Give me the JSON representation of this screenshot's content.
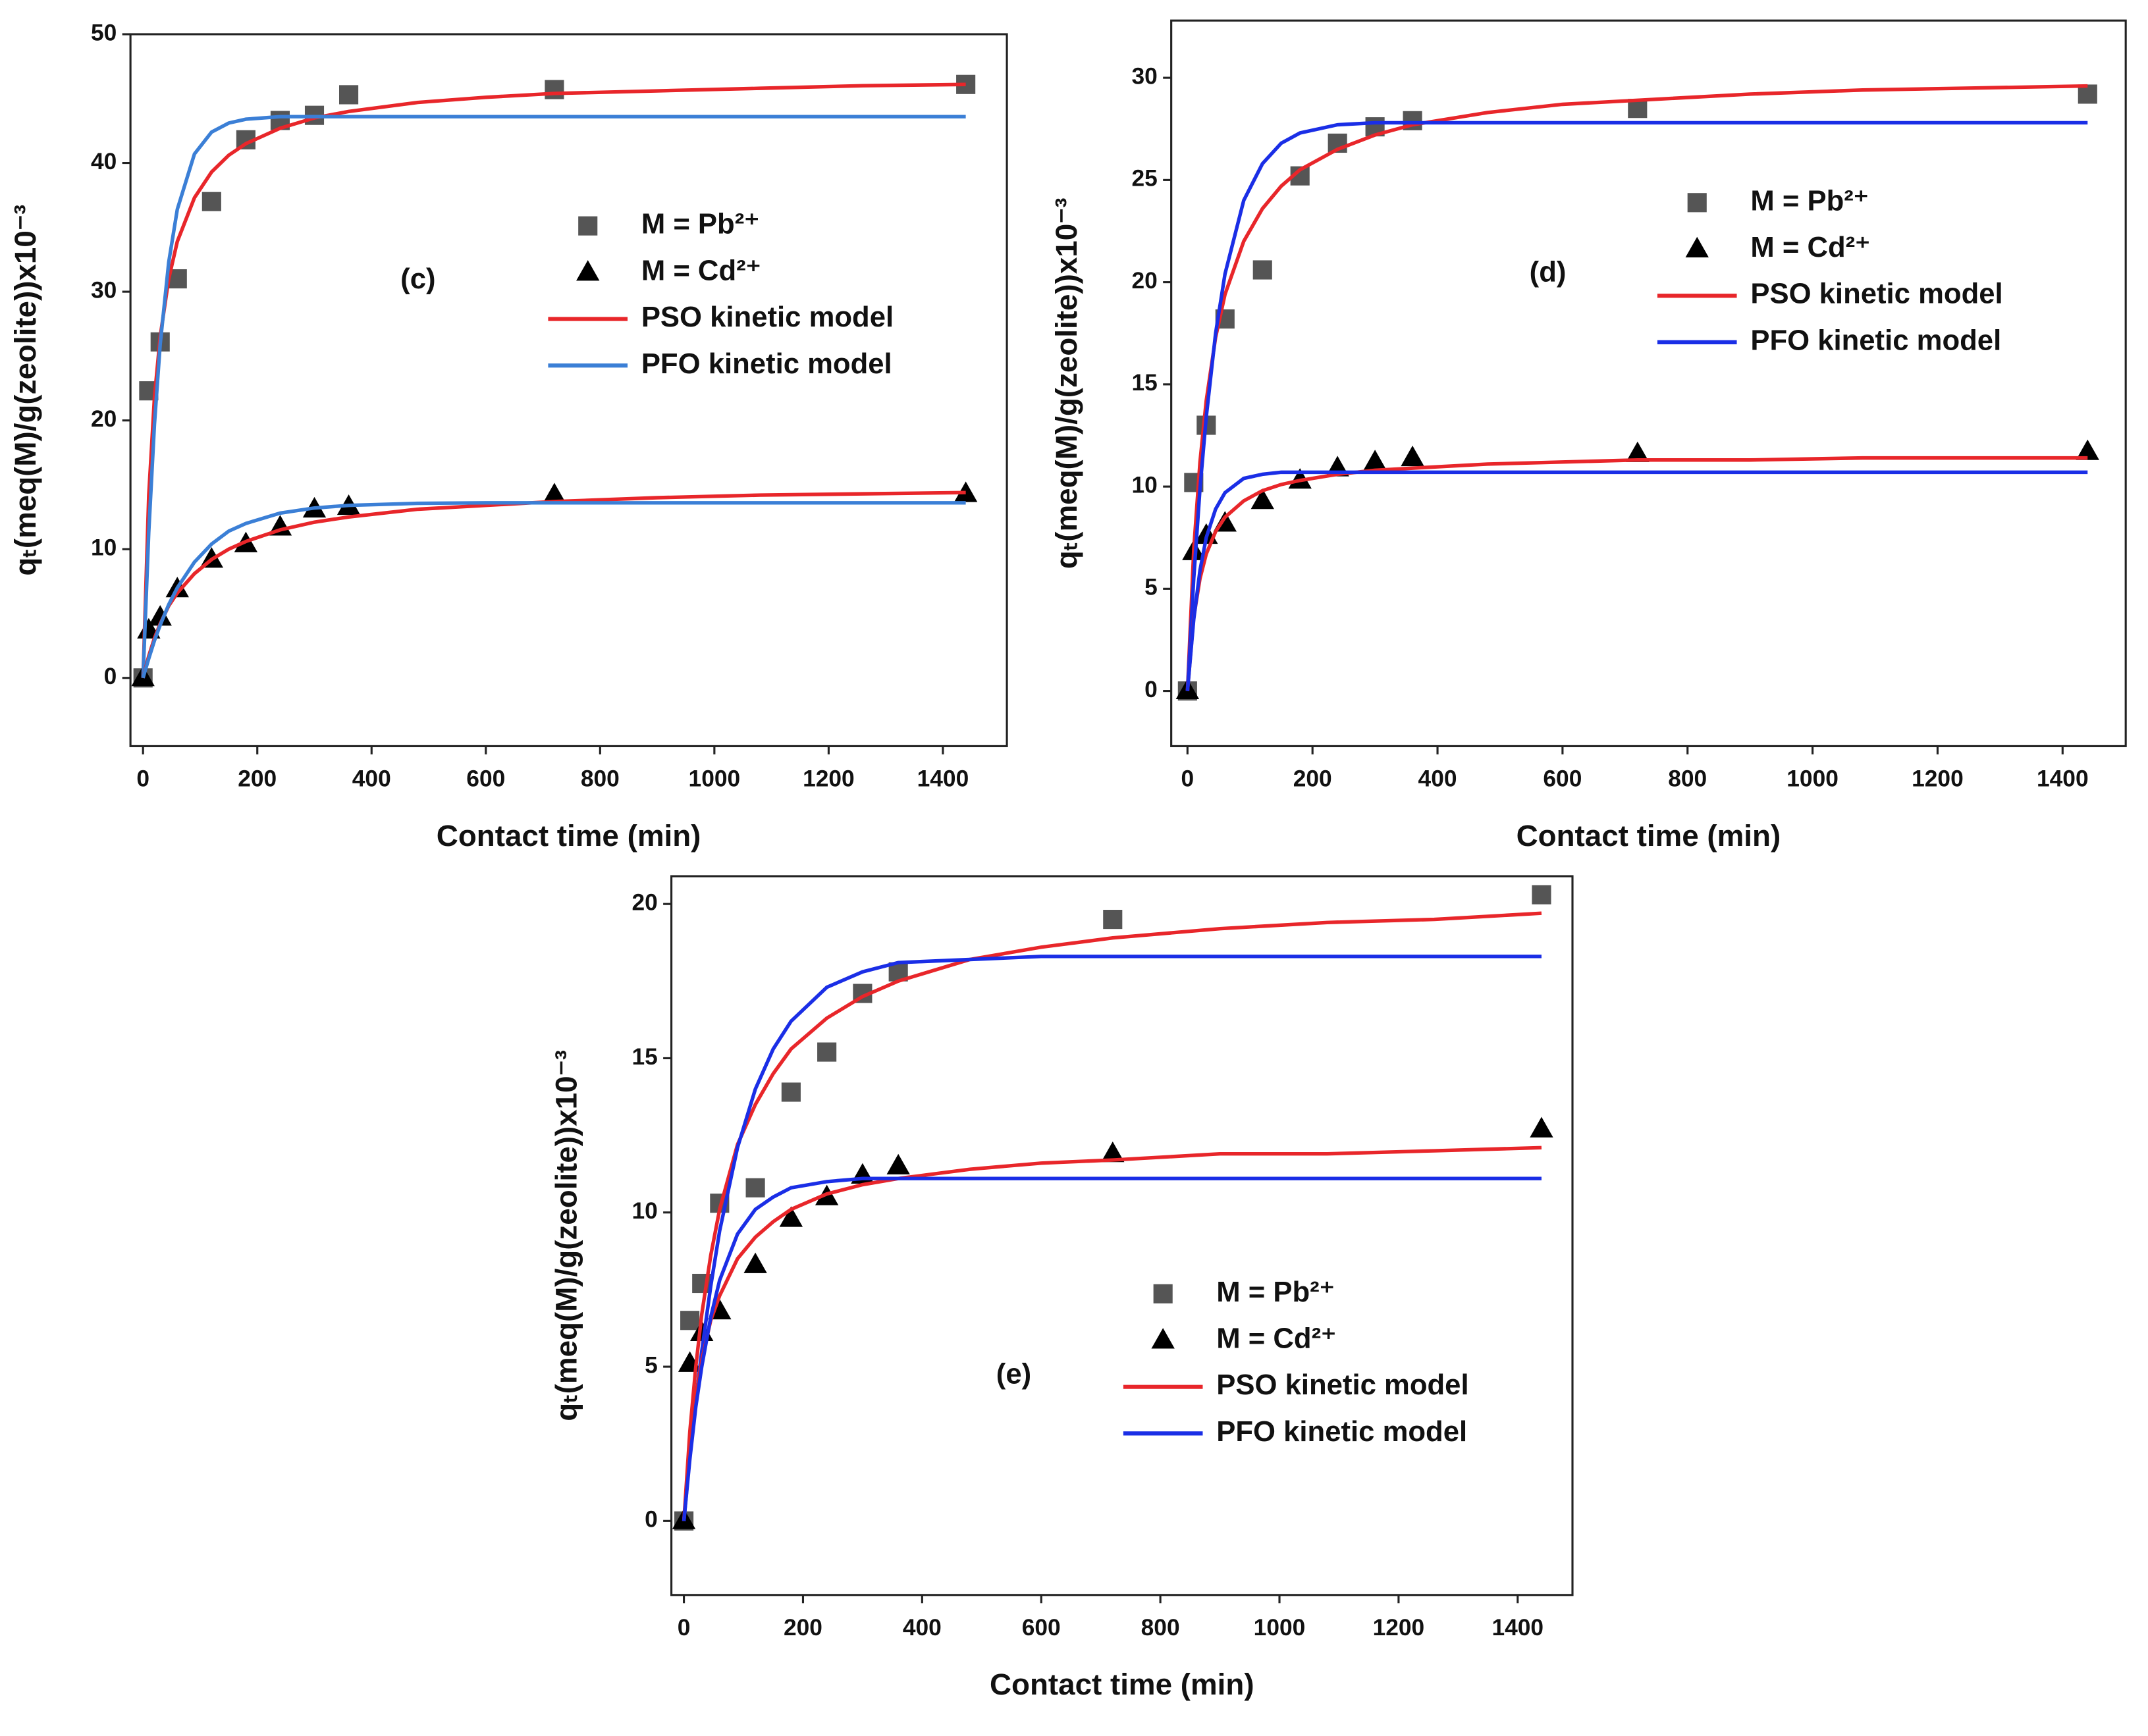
{
  "chart_data": [
    {
      "type": "scatter",
      "annotation": "(c)",
      "x_label": "Contact time (min)",
      "y_label": "qₜ(meq(M)/g(zeolite))x10⁻³",
      "xlim": [
        -22,
        1512
      ],
      "ylim": [
        -5.3,
        50
      ],
      "xticks": [
        0,
        200,
        400,
        600,
        800,
        1000,
        1200,
        1400
      ],
      "yticks": [
        0,
        10,
        20,
        30,
        40,
        50
      ],
      "series": [
        {
          "name": "M = Pb²⁺",
          "kind": "scatter",
          "marker": "square",
          "color": "#555555",
          "x": [
            0,
            10,
            30,
            60,
            120,
            180,
            240,
            300,
            360,
            720,
            1440
          ],
          "values": [
            0,
            22.3,
            26.1,
            31,
            37,
            41.8,
            43.3,
            43.7,
            45.3,
            45.7,
            46.1
          ]
        },
        {
          "name": "M = Cd²⁺",
          "kind": "scatter",
          "marker": "triangle",
          "color": "#000000",
          "x": [
            0,
            10,
            30,
            60,
            120,
            180,
            240,
            300,
            360,
            720,
            1440
          ],
          "values": [
            0,
            3.7,
            4.7,
            6.9,
            9.2,
            10.4,
            11.7,
            13.1,
            13.3,
            14.2,
            14.3
          ]
        },
        {
          "name": "PSO kinetic model",
          "kind": "line",
          "color": "#e8262a",
          "x": [
            0,
            10,
            20,
            30,
            45,
            60,
            90,
            120,
            150,
            180,
            240,
            300,
            360,
            480,
            600,
            720,
            900,
            1080,
            1260,
            1440
          ],
          "values": [
            0,
            14.2,
            21.8,
            26.5,
            31.0,
            33.9,
            37.3,
            39.3,
            40.6,
            41.5,
            42.7,
            43.5,
            44.0,
            44.7,
            45.1,
            45.4,
            45.6,
            45.8,
            46.0,
            46.1
          ]
        },
        {
          "name": "PFO kinetic model",
          "kind": "line",
          "color": "#3b7fd6",
          "x": [
            0,
            10,
            20,
            30,
            45,
            60,
            90,
            120,
            150,
            180,
            240,
            300,
            360,
            480,
            600,
            720,
            900,
            1080,
            1260,
            1440
          ],
          "values": [
            0,
            11.3,
            19.7,
            25.9,
            32.3,
            36.4,
            40.7,
            42.4,
            43.1,
            43.4,
            43.6,
            43.6,
            43.6,
            43.6,
            43.6,
            43.6,
            43.6,
            43.6,
            43.6,
            43.6
          ]
        },
        {
          "kind": "line",
          "color": "#e8262a",
          "x": [
            0,
            10,
            20,
            30,
            45,
            60,
            90,
            120,
            150,
            180,
            240,
            300,
            360,
            480,
            600,
            720,
            900,
            1080,
            1260,
            1440
          ],
          "values": [
            0,
            1.7,
            3.1,
            4.2,
            5.6,
            6.6,
            8.1,
            9.2,
            10.0,
            10.6,
            11.5,
            12.1,
            12.5,
            13.1,
            13.4,
            13.7,
            14.0,
            14.2,
            14.3,
            14.4
          ]
        },
        {
          "kind": "line",
          "color": "#3b7fd6",
          "x": [
            0,
            10,
            20,
            30,
            45,
            60,
            90,
            120,
            150,
            180,
            240,
            300,
            360,
            480,
            600,
            720,
            900,
            1080,
            1260,
            1440
          ],
          "values": [
            0,
            1.5,
            2.9,
            4.1,
            5.7,
            7.0,
            9.0,
            10.4,
            11.4,
            12.0,
            12.8,
            13.2,
            13.4,
            13.56,
            13.6,
            13.6,
            13.6,
            13.6,
            13.6,
            13.6
          ]
        }
      ]
    },
    {
      "type": "scatter",
      "annotation": "(d)",
      "x_label": "Contact time (min)",
      "y_label": "qₜ(meq(M)/g(zeolite))x10⁻³",
      "xlim": [
        -26,
        1501
      ],
      "ylim": [
        -2.7,
        32.8
      ],
      "xticks": [
        0,
        200,
        400,
        600,
        800,
        1000,
        1200,
        1400
      ],
      "yticks": [
        0,
        5,
        10,
        15,
        20,
        25,
        30
      ],
      "series": [
        {
          "name": "M = Pb²⁺",
          "kind": "scatter",
          "marker": "square",
          "color": "#555555",
          "x": [
            0,
            10,
            30,
            60,
            120,
            180,
            240,
            300,
            360,
            720,
            1440
          ],
          "values": [
            0,
            10.2,
            13.0,
            18.2,
            20.6,
            25.2,
            26.8,
            27.6,
            27.9,
            28.5,
            29.2
          ]
        },
        {
          "name": "M = Cd²⁺",
          "kind": "scatter",
          "marker": "triangle",
          "color": "#000000",
          "x": [
            0,
            10,
            30,
            60,
            120,
            180,
            240,
            300,
            360,
            720,
            1440
          ],
          "values": [
            0,
            6.8,
            7.6,
            8.2,
            9.3,
            10.3,
            10.9,
            11.2,
            11.4,
            11.6,
            11.7
          ]
        },
        {
          "name": "PSO kinetic model",
          "kind": "line",
          "color": "#e8262a",
          "x": [
            0,
            10,
            20,
            30,
            45,
            60,
            90,
            120,
            150,
            180,
            240,
            300,
            360,
            480,
            600,
            720,
            900,
            1080,
            1260,
            1440
          ],
          "values": [
            0,
            6.9,
            11.2,
            14.2,
            17.3,
            19.4,
            22.0,
            23.6,
            24.7,
            25.5,
            26.5,
            27.2,
            27.7,
            28.3,
            28.7,
            28.9,
            29.2,
            29.4,
            29.5,
            29.6
          ]
        },
        {
          "name": "PFO kinetic model",
          "kind": "line",
          "color": "#1a2ee6",
          "x": [
            0,
            10,
            20,
            30,
            45,
            60,
            90,
            120,
            150,
            180,
            240,
            300,
            360,
            480,
            600,
            720,
            900,
            1080,
            1260,
            1440
          ],
          "values": [
            0,
            5.5,
            9.9,
            13.4,
            17.5,
            20.4,
            24.0,
            25.8,
            26.8,
            27.3,
            27.7,
            27.8,
            27.8,
            27.8,
            27.8,
            27.8,
            27.8,
            27.8,
            27.8,
            27.8
          ]
        },
        {
          "kind": "line",
          "color": "#e8262a",
          "x": [
            0,
            10,
            20,
            30,
            45,
            60,
            90,
            120,
            150,
            180,
            240,
            300,
            360,
            480,
            600,
            720,
            900,
            1080,
            1260,
            1440
          ],
          "values": [
            0,
            3.6,
            5.5,
            6.7,
            7.8,
            8.5,
            9.3,
            9.8,
            10.1,
            10.3,
            10.6,
            10.8,
            10.9,
            11.1,
            11.2,
            11.3,
            11.3,
            11.4,
            11.4,
            11.4
          ]
        },
        {
          "kind": "line",
          "color": "#1a2ee6",
          "x": [
            0,
            10,
            20,
            30,
            45,
            60,
            90,
            120,
            150,
            180,
            240,
            300,
            360,
            480,
            600,
            720,
            900,
            1080,
            1260,
            1440
          ],
          "values": [
            0,
            3.5,
            5.9,
            7.5,
            8.9,
            9.7,
            10.4,
            10.6,
            10.7,
            10.7,
            10.7,
            10.7,
            10.7,
            10.7,
            10.7,
            10.7,
            10.7,
            10.7,
            10.7,
            10.7
          ]
        }
      ]
    },
    {
      "type": "scatter",
      "annotation": "(e)",
      "x_label": "Contact time (min)",
      "y_label": "qₜ(meq(M)/g(zeolite))x10⁻³",
      "xlim": [
        -21,
        1492
      ],
      "ylim": [
        -2.4,
        20.9
      ],
      "xticks": [
        0,
        200,
        400,
        600,
        800,
        1000,
        1200,
        1400
      ],
      "yticks": [
        0,
        5,
        10,
        15,
        20
      ],
      "series": [
        {
          "name": "M = Pb²⁺",
          "kind": "scatter",
          "marker": "square",
          "color": "#555555",
          "x": [
            0,
            10,
            30,
            60,
            120,
            180,
            240,
            300,
            360,
            720,
            1440
          ],
          "values": [
            0,
            6.5,
            7.7,
            10.3,
            10.8,
            13.9,
            15.2,
            17.1,
            17.8,
            19.5,
            20.3
          ]
        },
        {
          "name": "M = Cd²⁺",
          "kind": "scatter",
          "marker": "triangle",
          "color": "#000000",
          "x": [
            0,
            10,
            30,
            60,
            120,
            180,
            240,
            300,
            360,
            720,
            1440
          ],
          "values": [
            0,
            5.1,
            6.1,
            6.8,
            8.3,
            9.8,
            10.5,
            11.2,
            11.5,
            11.9,
            12.7
          ]
        },
        {
          "name": "PSO kinetic model",
          "kind": "line",
          "color": "#e8262a",
          "x": [
            0,
            10,
            20,
            30,
            45,
            60,
            90,
            120,
            150,
            180,
            240,
            300,
            360,
            480,
            600,
            720,
            900,
            1080,
            1260,
            1440
          ],
          "values": [
            0,
            2.9,
            5.0,
            6.7,
            8.6,
            10.1,
            12.2,
            13.5,
            14.5,
            15.3,
            16.3,
            17.0,
            17.5,
            18.2,
            18.6,
            18.9,
            19.2,
            19.4,
            19.5,
            19.7
          ]
        },
        {
          "name": "PFO kinetic model",
          "kind": "line",
          "color": "#1a2ee6",
          "x": [
            0,
            10,
            20,
            30,
            45,
            60,
            90,
            120,
            150,
            180,
            240,
            300,
            360,
            480,
            600,
            720,
            900,
            1080,
            1260,
            1440
          ],
          "values": [
            0,
            2.1,
            3.9,
            5.5,
            7.6,
            9.4,
            12.1,
            14.0,
            15.3,
            16.2,
            17.3,
            17.8,
            18.1,
            18.2,
            18.3,
            18.3,
            18.3,
            18.3,
            18.3,
            18.3
          ]
        },
        {
          "kind": "line",
          "color": "#e8262a",
          "x": [
            0,
            10,
            20,
            30,
            45,
            60,
            90,
            120,
            150,
            180,
            240,
            300,
            360,
            480,
            600,
            720,
            900,
            1080,
            1260,
            1440
          ],
          "values": [
            0,
            2.4,
            4.0,
            5.2,
            6.5,
            7.3,
            8.5,
            9.2,
            9.7,
            10.1,
            10.6,
            10.9,
            11.1,
            11.4,
            11.6,
            11.7,
            11.9,
            11.9,
            12.0,
            12.1
          ]
        },
        {
          "kind": "line",
          "color": "#1a2ee6",
          "x": [
            0,
            10,
            20,
            30,
            45,
            60,
            90,
            120,
            150,
            180,
            240,
            300,
            360,
            480,
            600,
            720,
            900,
            1080,
            1260,
            1440
          ],
          "values": [
            0,
            2.0,
            3.7,
            5.0,
            6.6,
            7.8,
            9.3,
            10.1,
            10.5,
            10.8,
            11.0,
            11.1,
            11.1,
            11.1,
            11.1,
            11.1,
            11.1,
            11.1,
            11.1,
            11.1
          ]
        }
      ]
    }
  ]
}
